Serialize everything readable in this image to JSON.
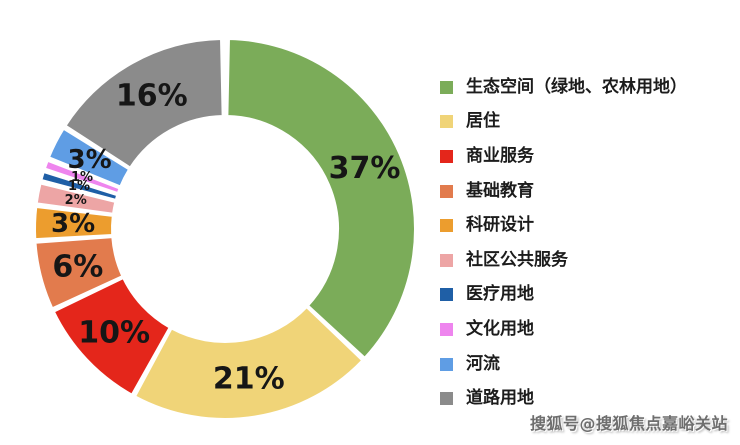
{
  "background_color": "#ffffff",
  "chart_data": {
    "type": "pie",
    "subtype": "donut",
    "title": "",
    "direction": "clockwise",
    "start_angle_deg": 0,
    "inner_radius_ratio": 0.595,
    "legend_position": "right",
    "data_label_color": "#161616",
    "separator_color": "#ffffff",
    "segments": [
      {
        "label": "生态空间（绿地、农林用地）",
        "value": 37,
        "data_label": "37%",
        "color": "#7BAC59"
      },
      {
        "label": "居住",
        "value": 21,
        "data_label": "21%",
        "color": "#F0D478"
      },
      {
        "label": "商业服务",
        "value": 10,
        "data_label": "10%",
        "color": "#E4261B"
      },
      {
        "label": "基础教育",
        "value": 6,
        "data_label": "6%",
        "color": "#E27B4D"
      },
      {
        "label": "科研设计",
        "value": 3,
        "data_label": "3%",
        "color": "#EC9D2E"
      },
      {
        "label": "社区公共服务",
        "value": 2,
        "data_label": "2%",
        "color": "#EDA5A5"
      },
      {
        "label": "医疗用地",
        "value": 1,
        "data_label": "1%",
        "color": "#1F5FA6"
      },
      {
        "label": "文化用地",
        "value": 1,
        "data_label": "1%",
        "color": "#EE85EE"
      },
      {
        "label": "河流",
        "value": 3,
        "data_label": "3%",
        "color": "#5F9DE4"
      },
      {
        "label": "道路用地",
        "value": 16,
        "data_label": "16%",
        "color": "#8B8B8B"
      }
    ]
  },
  "watermark": {
    "text": "搜狐号@搜狐焦点嘉峪关站"
  }
}
